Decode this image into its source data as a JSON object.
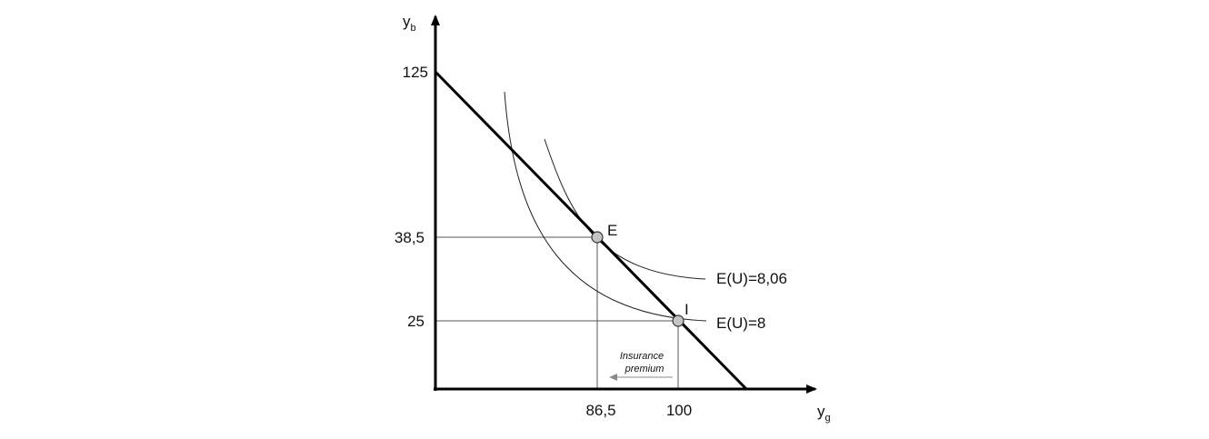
{
  "axes": {
    "y_label_main": "y",
    "y_label_sub": "b",
    "x_label_main": "y",
    "x_label_sub": "g"
  },
  "ticks": {
    "y_125": "125",
    "y_38_5": "38,5",
    "y_25": "25",
    "x_86_5": "86,5",
    "x_100": "100"
  },
  "points": {
    "e": "E",
    "i": "I"
  },
  "curves": {
    "upper": "E(U)=8,06",
    "lower": "E(U)=8"
  },
  "note": {
    "line1": "Insurance",
    "line2": "premium"
  }
}
